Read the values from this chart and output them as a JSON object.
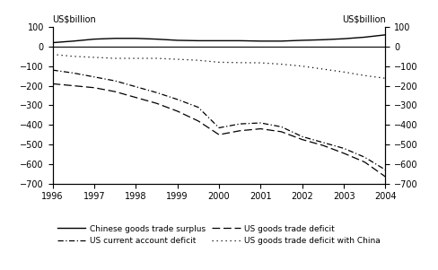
{
  "years": [
    1996,
    1996.5,
    1997,
    1997.5,
    1998,
    1998.5,
    1999,
    1999.5,
    2000,
    2000.5,
    2001,
    2001.5,
    2002,
    2002.5,
    2003,
    2003.5,
    2004
  ],
  "chinese_surplus": [
    20,
    28,
    38,
    42,
    42,
    38,
    32,
    30,
    30,
    30,
    28,
    28,
    32,
    35,
    40,
    48,
    60
  ],
  "us_current_account": [
    -120,
    -135,
    -155,
    -175,
    -205,
    -235,
    -270,
    -310,
    -415,
    -395,
    -390,
    -410,
    -460,
    -490,
    -520,
    -565,
    -630
  ],
  "us_goods_deficit": [
    -190,
    -200,
    -210,
    -230,
    -260,
    -290,
    -330,
    -380,
    -450,
    -430,
    -420,
    -435,
    -475,
    -505,
    -545,
    -590,
    -665
  ],
  "us_goods_china": [
    -40,
    -50,
    -55,
    -60,
    -60,
    -60,
    -65,
    -70,
    -80,
    -82,
    -83,
    -90,
    -100,
    -115,
    -130,
    -148,
    -162
  ],
  "ylim": [
    -700,
    100
  ],
  "yticks": [
    -700,
    -600,
    -500,
    -400,
    -300,
    -200,
    -100,
    0,
    100
  ],
  "title_left": "US$billion",
  "title_right": "US$billion",
  "legend_col1": [
    "Chinese goods trade surplus",
    "US goods trade deficit"
  ],
  "legend_col2": [
    "US current account deficit",
    "US goods trade deficit with China"
  ],
  "line_color": "#000000",
  "xlim": [
    1996,
    2004
  ],
  "xticks": [
    1996,
    1997,
    1998,
    1999,
    2000,
    2001,
    2002,
    2003,
    2004
  ],
  "tick_fontsize": 7,
  "label_fontsize": 7,
  "legend_fontsize": 6.5
}
